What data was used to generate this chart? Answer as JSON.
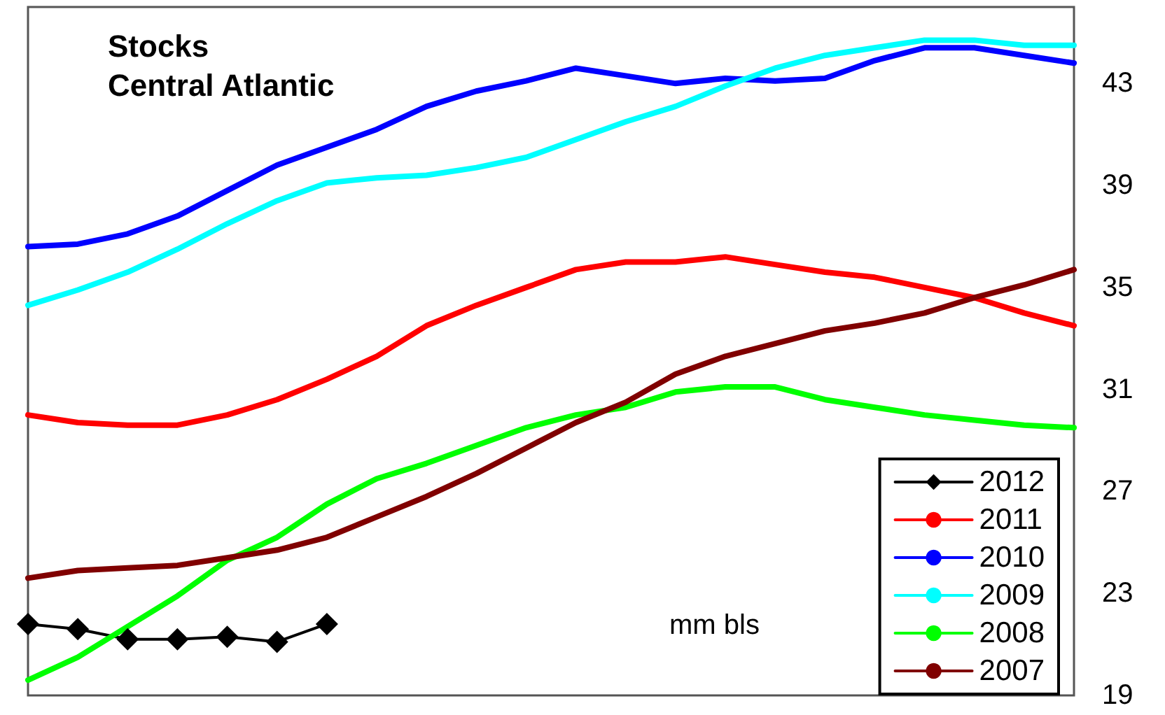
{
  "chart_data": {
    "type": "line",
    "title": "Stocks\nCentral Atlantic",
    "annotations": [
      "mm bls"
    ],
    "categories": [
      null,
      null,
      null,
      null,
      null,
      null,
      null,
      null,
      null,
      null,
      null,
      null,
      null,
      null,
      null,
      null,
      null,
      null,
      null,
      null,
      null,
      null
    ],
    "ylim": [
      19,
      46
    ],
    "yticks": [
      19,
      23,
      27,
      31,
      35,
      39,
      43
    ],
    "tick_labels": "y",
    "grid": false,
    "legend": "bottom right",
    "line_style": "solid",
    "series": [
      {
        "name": "2012",
        "color": "#000000",
        "marker": "diamond",
        "values": [
          21.8,
          21.6,
          21.2,
          21.2,
          21.3,
          21.1,
          21.8,
          null,
          null,
          null,
          null,
          null,
          null,
          null,
          null,
          null,
          null,
          null,
          null,
          null,
          null,
          null
        ]
      },
      {
        "name": "2011",
        "color": "#ff0000",
        "values": [
          30.0,
          29.7,
          29.6,
          29.6,
          30.0,
          30.6,
          31.4,
          32.3,
          33.5,
          34.3,
          35.0,
          35.7,
          36.0,
          36.0,
          36.2,
          35.9,
          35.6,
          35.4,
          35.0,
          34.6,
          34.0,
          33.5
        ]
      },
      {
        "name": "2010",
        "color": "#0000ff",
        "values": [
          36.6,
          36.7,
          37.1,
          37.8,
          38.8,
          39.8,
          40.5,
          41.2,
          42.1,
          42.7,
          43.1,
          43.6,
          43.3,
          43.0,
          43.2,
          43.1,
          43.2,
          43.9,
          44.4,
          44.4,
          44.1,
          43.8
        ]
      },
      {
        "name": "2009",
        "color": "#00ffff",
        "values": [
          34.3,
          34.9,
          35.6,
          36.5,
          37.5,
          38.4,
          39.1,
          39.3,
          39.4,
          39.7,
          40.1,
          40.8,
          41.5,
          42.1,
          42.9,
          43.6,
          44.1,
          44.4,
          44.7,
          44.7,
          44.5,
          44.5
        ]
      },
      {
        "name": "2008",
        "color": "#00ff00",
        "values": [
          19.6,
          20.5,
          21.7,
          22.9,
          24.3,
          25.2,
          26.5,
          27.5,
          28.1,
          28.8,
          29.5,
          30.0,
          30.3,
          30.9,
          31.1,
          31.1,
          30.6,
          30.3,
          30.0,
          29.8,
          29.6,
          29.5
        ]
      },
      {
        "name": "2007",
        "color": "#800000",
        "values": [
          23.6,
          23.9,
          24.0,
          24.1,
          24.4,
          24.7,
          25.2,
          26.0,
          26.8,
          27.7,
          28.7,
          29.7,
          30.5,
          31.6,
          32.3,
          32.8,
          33.3,
          33.6,
          34.0,
          34.6,
          35.1,
          35.7
        ]
      }
    ]
  }
}
